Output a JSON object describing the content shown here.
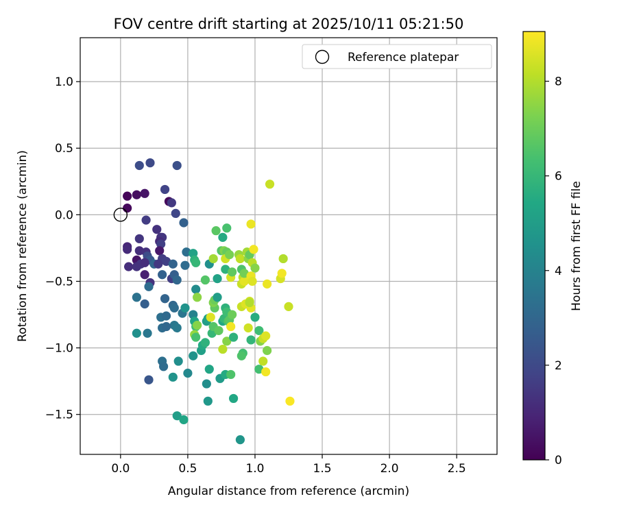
{
  "chart_data": {
    "type": "scatter",
    "title": "FOV centre drift starting at 2025/10/11 05:21:50",
    "xlabel": "Angular distance from reference (arcmin)",
    "ylabel": "Rotation from reference (arcmin)",
    "xlim": [
      -0.3,
      2.8
    ],
    "ylim": [
      -1.8,
      1.33
    ],
    "xticks": [
      0.0,
      0.5,
      1.0,
      1.5,
      2.0,
      2.5
    ],
    "xtick_labels": [
      "0.0",
      "0.5",
      "1.0",
      "1.5",
      "2.0",
      "2.5"
    ],
    "yticks": [
      1.0,
      0.5,
      0.0,
      -0.5,
      -1.0,
      -1.5
    ],
    "ytick_labels": [
      "1.0",
      "0.5",
      "0.0",
      "−0.5",
      "−1.0",
      "−1.5"
    ],
    "grid": true,
    "legend": {
      "position": "top-right",
      "label": "Reference platepar",
      "marker": "open-circle"
    },
    "reference_point": {
      "x": 0.0,
      "y": 0.0
    },
    "colorbar": {
      "label": "Hours from first FF file",
      "min": 0,
      "max": 9.05,
      "ticks": [
        0,
        2,
        4,
        6,
        8
      ],
      "tick_labels": [
        "0",
        "2",
        "4",
        "6",
        "8"
      ],
      "colormap": "viridis"
    },
    "points": [
      {
        "x": 0.05,
        "y": 0.14,
        "h": 0.1
      },
      {
        "x": 0.05,
        "y": 0.05,
        "h": 0.2
      },
      {
        "x": 0.12,
        "y": 0.15,
        "h": 0.3
      },
      {
        "x": 0.18,
        "y": 0.16,
        "h": 0.5
      },
      {
        "x": 0.14,
        "y": 0.37,
        "h": 2.1
      },
      {
        "x": 0.22,
        "y": 0.39,
        "h": 2.0
      },
      {
        "x": 0.42,
        "y": 0.37,
        "h": 2.2
      },
      {
        "x": 0.33,
        "y": 0.19,
        "h": 1.8
      },
      {
        "x": 0.36,
        "y": 0.1,
        "h": 0.2
      },
      {
        "x": 0.38,
        "y": 0.09,
        "h": 1.5
      },
      {
        "x": 0.41,
        "y": 0.01,
        "h": 1.9
      },
      {
        "x": 0.47,
        "y": -0.06,
        "h": 2.8
      },
      {
        "x": 0.19,
        "y": -0.04,
        "h": 1.6
      },
      {
        "x": 0.27,
        "y": -0.11,
        "h": 1.3
      },
      {
        "x": 0.3,
        "y": -0.17,
        "h": 1.2
      },
      {
        "x": 0.31,
        "y": -0.17,
        "h": 1.4
      },
      {
        "x": 0.14,
        "y": -0.18,
        "h": 1.4
      },
      {
        "x": 0.29,
        "y": -0.2,
        "h": 1.1
      },
      {
        "x": 0.3,
        "y": -0.22,
        "h": 1.7
      },
      {
        "x": 0.05,
        "y": -0.24,
        "h": 1.0
      },
      {
        "x": 0.05,
        "y": -0.26,
        "h": 1.1
      },
      {
        "x": 0.14,
        "y": -0.27,
        "h": 1.2
      },
      {
        "x": 0.19,
        "y": -0.28,
        "h": 1.3
      },
      {
        "x": 0.29,
        "y": -0.27,
        "h": 0.6
      },
      {
        "x": 0.2,
        "y": -0.31,
        "h": 2.1
      },
      {
        "x": 0.22,
        "y": -0.34,
        "h": 2.5
      },
      {
        "x": 0.25,
        "y": -0.37,
        "h": 3.0
      },
      {
        "x": 0.12,
        "y": -0.34,
        "h": 0.5
      },
      {
        "x": 0.15,
        "y": -0.37,
        "h": 1.4
      },
      {
        "x": 0.18,
        "y": -0.36,
        "h": 1.2
      },
      {
        "x": 0.31,
        "y": -0.33,
        "h": 1.6
      },
      {
        "x": 0.34,
        "y": -0.35,
        "h": 1.7
      },
      {
        "x": 0.28,
        "y": -0.37,
        "h": 1.5
      },
      {
        "x": 0.06,
        "y": -0.39,
        "h": 1.2
      },
      {
        "x": 0.12,
        "y": -0.39,
        "h": 1.3
      },
      {
        "x": 0.18,
        "y": -0.45,
        "h": 0.8
      },
      {
        "x": 0.22,
        "y": -0.51,
        "h": 1.3
      },
      {
        "x": 0.31,
        "y": -0.45,
        "h": 2.8
      },
      {
        "x": 0.38,
        "y": -0.48,
        "h": 1.6
      },
      {
        "x": 0.4,
        "y": -0.45,
        "h": 2.7
      },
      {
        "x": 0.42,
        "y": -0.49,
        "h": 3.0
      },
      {
        "x": 0.39,
        "y": -0.37,
        "h": 2.9
      },
      {
        "x": 0.48,
        "y": -0.38,
        "h": 3.2
      },
      {
        "x": 0.49,
        "y": -0.28,
        "h": 3.3
      },
      {
        "x": 0.21,
        "y": -0.54,
        "h": 3.2
      },
      {
        "x": 0.12,
        "y": -0.62,
        "h": 3.4
      },
      {
        "x": 0.18,
        "y": -0.67,
        "h": 2.7
      },
      {
        "x": 0.33,
        "y": -0.63,
        "h": 2.9
      },
      {
        "x": 0.39,
        "y": -0.68,
        "h": 3.0
      },
      {
        "x": 0.4,
        "y": -0.7,
        "h": 3.2
      },
      {
        "x": 0.3,
        "y": -0.77,
        "h": 3.3
      },
      {
        "x": 0.34,
        "y": -0.76,
        "h": 3.1
      },
      {
        "x": 0.46,
        "y": -0.74,
        "h": 3.5
      },
      {
        "x": 0.48,
        "y": -0.7,
        "h": 4.6
      },
      {
        "x": 0.4,
        "y": -0.83,
        "h": 3.6
      },
      {
        "x": 0.42,
        "y": -0.85,
        "h": 3.7
      },
      {
        "x": 0.31,
        "y": -0.85,
        "h": 3.2
      },
      {
        "x": 0.34,
        "y": -0.84,
        "h": 3.0
      },
      {
        "x": 0.12,
        "y": -0.89,
        "h": 4.5
      },
      {
        "x": 0.2,
        "y": -0.89,
        "h": 3.6
      },
      {
        "x": 0.31,
        "y": -1.1,
        "h": 3.3
      },
      {
        "x": 0.32,
        "y": -1.14,
        "h": 3.2
      },
      {
        "x": 0.21,
        "y": -1.24,
        "h": 2.4
      },
      {
        "x": 0.43,
        "y": -1.1,
        "h": 4.4
      },
      {
        "x": 0.39,
        "y": -1.22,
        "h": 4.6
      },
      {
        "x": 0.5,
        "y": -1.19,
        "h": 4.2
      },
      {
        "x": 0.42,
        "y": -1.51,
        "h": 5.0
      },
      {
        "x": 0.47,
        "y": -1.54,
        "h": 5.3
      },
      {
        "x": 0.54,
        "y": -0.29,
        "h": 5.2
      },
      {
        "x": 0.55,
        "y": -0.34,
        "h": 5.8
      },
      {
        "x": 0.56,
        "y": -0.36,
        "h": 6.0
      },
      {
        "x": 0.66,
        "y": -0.37,
        "h": 4.5
      },
      {
        "x": 0.56,
        "y": -0.56,
        "h": 4.3
      },
      {
        "x": 0.57,
        "y": -0.62,
        "h": 7.5
      },
      {
        "x": 0.54,
        "y": -0.75,
        "h": 4.0
      },
      {
        "x": 0.55,
        "y": -0.8,
        "h": 5.3
      },
      {
        "x": 0.56,
        "y": -0.84,
        "h": 6.2
      },
      {
        "x": 0.57,
        "y": -0.83,
        "h": 7.4
      },
      {
        "x": 0.55,
        "y": -0.9,
        "h": 7.6
      },
      {
        "x": 0.56,
        "y": -0.92,
        "h": 6.4
      },
      {
        "x": 0.54,
        "y": -1.06,
        "h": 4.6
      },
      {
        "x": 0.6,
        "y": -1.02,
        "h": 5.1
      },
      {
        "x": 0.61,
        "y": -0.98,
        "h": 5.5
      },
      {
        "x": 0.63,
        "y": -0.96,
        "h": 5.8
      },
      {
        "x": 0.64,
        "y": -1.27,
        "h": 4.4
      },
      {
        "x": 0.65,
        "y": -1.4,
        "h": 4.8
      },
      {
        "x": 0.66,
        "y": -1.16,
        "h": 5.3
      },
      {
        "x": 0.64,
        "y": -0.8,
        "h": 5.0
      },
      {
        "x": 0.65,
        "y": -0.78,
        "h": 5.2
      },
      {
        "x": 0.67,
        "y": -0.77,
        "h": 8.6
      },
      {
        "x": 0.68,
        "y": -0.89,
        "h": 6.0
      },
      {
        "x": 0.69,
        "y": -0.84,
        "h": 6.6
      },
      {
        "x": 0.7,
        "y": -0.7,
        "h": 6.8
      },
      {
        "x": 0.69,
        "y": -0.66,
        "h": 7.3
      },
      {
        "x": 0.7,
        "y": -0.64,
        "h": 7.0
      },
      {
        "x": 0.72,
        "y": -0.48,
        "h": 5.2
      },
      {
        "x": 0.72,
        "y": -0.62,
        "h": 5.0
      },
      {
        "x": 0.73,
        "y": -0.87,
        "h": 6.8
      },
      {
        "x": 0.76,
        "y": -0.8,
        "h": 5.4
      },
      {
        "x": 0.77,
        "y": -0.78,
        "h": 6.0
      },
      {
        "x": 0.74,
        "y": -1.23,
        "h": 4.9
      },
      {
        "x": 0.78,
        "y": -1.2,
        "h": 5.5
      },
      {
        "x": 0.63,
        "y": -0.49,
        "h": 6.6
      },
      {
        "x": 0.69,
        "y": -0.33,
        "h": 7.8
      },
      {
        "x": 0.71,
        "y": -0.12,
        "h": 6.7
      },
      {
        "x": 0.76,
        "y": -0.17,
        "h": 5.5
      },
      {
        "x": 0.79,
        "y": -0.1,
        "h": 6.4
      },
      {
        "x": 0.75,
        "y": -0.27,
        "h": 6.6
      },
      {
        "x": 0.77,
        "y": -0.27,
        "h": 7.3
      },
      {
        "x": 0.79,
        "y": -0.28,
        "h": 6.9
      },
      {
        "x": 0.78,
        "y": -0.33,
        "h": 8.4
      },
      {
        "x": 0.78,
        "y": -0.41,
        "h": 5.8
      },
      {
        "x": 0.81,
        "y": -0.3,
        "h": 7.2
      },
      {
        "x": 0.82,
        "y": -0.47,
        "h": 8.5
      },
      {
        "x": 0.83,
        "y": -0.43,
        "h": 6.8
      },
      {
        "x": 0.78,
        "y": -0.7,
        "h": 5.8
      },
      {
        "x": 0.79,
        "y": -0.73,
        "h": 6.2
      },
      {
        "x": 0.8,
        "y": -0.8,
        "h": 6.5
      },
      {
        "x": 0.81,
        "y": -0.79,
        "h": 6.7
      },
      {
        "x": 0.83,
        "y": -0.75,
        "h": 7.0
      },
      {
        "x": 0.82,
        "y": -0.84,
        "h": 8.9
      },
      {
        "x": 0.79,
        "y": -0.95,
        "h": 7.4
      },
      {
        "x": 0.76,
        "y": -1.01,
        "h": 8.1
      },
      {
        "x": 0.84,
        "y": -0.92,
        "h": 5.8
      },
      {
        "x": 0.84,
        "y": -1.38,
        "h": 5.4
      },
      {
        "x": 0.82,
        "y": -1.2,
        "h": 6.5
      },
      {
        "x": 0.89,
        "y": -1.69,
        "h": 4.7
      },
      {
        "x": 0.88,
        "y": -0.3,
        "h": 7.6
      },
      {
        "x": 0.89,
        "y": -0.33,
        "h": 8.2
      },
      {
        "x": 0.9,
        "y": -0.41,
        "h": 6.5
      },
      {
        "x": 0.91,
        "y": -0.47,
        "h": 8.1
      },
      {
        "x": 0.9,
        "y": -0.52,
        "h": 8.3
      },
      {
        "x": 0.92,
        "y": -0.5,
        "h": 8.7
      },
      {
        "x": 0.92,
        "y": -0.44,
        "h": 7.1
      },
      {
        "x": 0.94,
        "y": -0.28,
        "h": 7.8
      },
      {
        "x": 0.95,
        "y": -0.33,
        "h": 7.5
      },
      {
        "x": 0.96,
        "y": -0.3,
        "h": 6.9
      },
      {
        "x": 0.97,
        "y": -0.07,
        "h": 8.8
      },
      {
        "x": 0.99,
        "y": -0.26,
        "h": 8.9
      },
      {
        "x": 0.98,
        "y": -0.36,
        "h": 8.1
      },
      {
        "x": 1.0,
        "y": -0.4,
        "h": 7.4
      },
      {
        "x": 0.97,
        "y": -0.46,
        "h": 8.8
      },
      {
        "x": 0.98,
        "y": -0.5,
        "h": 8.6
      },
      {
        "x": 0.9,
        "y": -0.69,
        "h": 8.3
      },
      {
        "x": 0.93,
        "y": -0.67,
        "h": 8.6
      },
      {
        "x": 0.96,
        "y": -0.65,
        "h": 8.4
      },
      {
        "x": 0.97,
        "y": -0.7,
        "h": 8.7
      },
      {
        "x": 0.96,
        "y": -0.66,
        "h": 8.0
      },
      {
        "x": 0.95,
        "y": -0.85,
        "h": 8.4
      },
      {
        "x": 0.97,
        "y": -0.94,
        "h": 5.9
      },
      {
        "x": 1.0,
        "y": -0.77,
        "h": 5.6
      },
      {
        "x": 0.91,
        "y": -1.04,
        "h": 6.3
      },
      {
        "x": 0.9,
        "y": -1.06,
        "h": 6.5
      },
      {
        "x": 1.03,
        "y": -0.87,
        "h": 6.2
      },
      {
        "x": 1.04,
        "y": -0.95,
        "h": 7.4
      },
      {
        "x": 1.06,
        "y": -0.93,
        "h": 8.3
      },
      {
        "x": 1.08,
        "y": -0.91,
        "h": 8.6
      },
      {
        "x": 1.06,
        "y": -1.1,
        "h": 8.2
      },
      {
        "x": 1.03,
        "y": -1.16,
        "h": 6.3
      },
      {
        "x": 1.08,
        "y": -1.18,
        "h": 8.9
      },
      {
        "x": 1.09,
        "y": -1.02,
        "h": 7.3
      },
      {
        "x": 1.09,
        "y": -0.52,
        "h": 8.8
      },
      {
        "x": 1.11,
        "y": 0.23,
        "h": 8.3
      },
      {
        "x": 1.19,
        "y": -0.48,
        "h": 8.5
      },
      {
        "x": 1.2,
        "y": -0.44,
        "h": 8.9
      },
      {
        "x": 1.21,
        "y": -0.33,
        "h": 8.0
      },
      {
        "x": 1.25,
        "y": -0.69,
        "h": 8.3
      },
      {
        "x": 1.26,
        "y": -1.4,
        "h": 9.0
      }
    ]
  }
}
